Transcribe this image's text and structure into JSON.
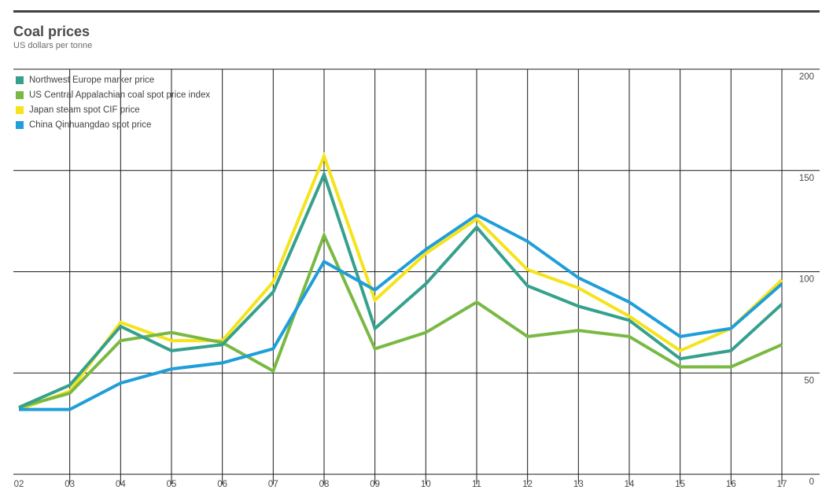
{
  "header": {
    "title": "Coal prices",
    "subtitle": "US dollars per tonne"
  },
  "colors": {
    "grid": "#1a1a1a",
    "tick_text": "#4a4b4d",
    "top_rule": "#3f4041"
  },
  "chart_data": {
    "type": "line",
    "title": "Coal prices",
    "ylabel": "US dollars per tonne",
    "xlabel": "",
    "categories": [
      "02",
      "03",
      "04",
      "05",
      "06",
      "07",
      "08",
      "09",
      "10",
      "11",
      "12",
      "13",
      "14",
      "15",
      "16",
      "17"
    ],
    "series": [
      {
        "id": "northwest-europe-marker-price",
        "name": "Northwest Europe marker price",
        "color": "#35a18c",
        "values": [
          33,
          44,
          73,
          61,
          64,
          90,
          148,
          72,
          94,
          122,
          93,
          83,
          76,
          57,
          61,
          84
        ]
      },
      {
        "id": "us-central-appalachian-coal-spot-price-index",
        "name": "US Central Appalachian coal spot price index",
        "color": "#79b943",
        "values": [
          33,
          40,
          66,
          70,
          65,
          51,
          118,
          62,
          70,
          85,
          68,
          71,
          68,
          53,
          53,
          64
        ]
      },
      {
        "id": "japan-steam-spot-cif-price",
        "name": "Japan steam spot CIF price",
        "color": "#f5e31b",
        "values": [
          32,
          41,
          75,
          66,
          66,
          95,
          157,
          86,
          109,
          126,
          101,
          92,
          78,
          61,
          72,
          96
        ]
      },
      {
        "id": "china-qinhuangdao-spot-price",
        "name": "China Qinhuangdao spot price",
        "color": "#1f9ed9",
        "values": [
          32,
          32,
          45,
          52,
          55,
          62,
          105,
          91,
          111,
          128,
          115,
          97,
          85,
          68,
          72,
          94
        ]
      }
    ],
    "ylim": [
      0,
      200
    ],
    "y_ticks": [
      200,
      150,
      100,
      50,
      0
    ],
    "grid": "horizontal and vertical",
    "legend_position": "top-left inside plot",
    "y_axis_side": "right"
  }
}
